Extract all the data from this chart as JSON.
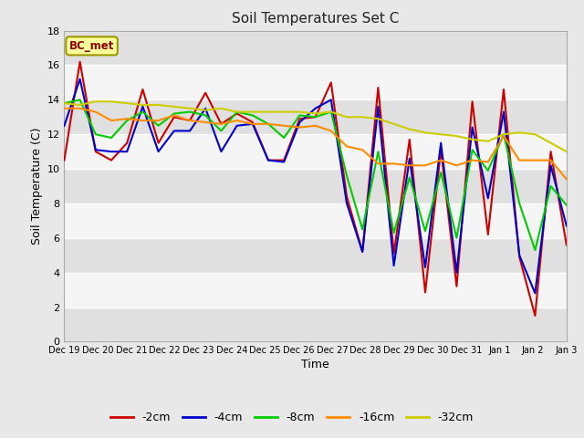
{
  "title": "Soil Temperatures Set C",
  "xlabel": "Time",
  "ylabel": "Soil Temperature (C)",
  "ylim": [
    0,
    18
  ],
  "yticks": [
    0,
    2,
    4,
    6,
    8,
    10,
    12,
    14,
    16,
    18
  ],
  "xtick_labels": [
    "Dec 19",
    "Dec 20",
    "Dec 21",
    "Dec 22",
    "Dec 23",
    "Dec 24",
    "Dec 25",
    "Dec 26",
    "Dec 27",
    "Dec 28",
    "Dec 29",
    "Dec 30",
    "Dec 31",
    "Jan 1",
    "Jan 2",
    "Jan 3"
  ],
  "annotation_text": "BC_met",
  "annotation_color": "#8B0000",
  "annotation_bg": "#FFFF99",
  "annotation_edge": "#999900",
  "series": {
    "-2cm": {
      "color": "#CC0000",
      "linewidth": 1.5,
      "data": [
        10.5,
        16.2,
        11.0,
        10.5,
        11.5,
        14.6,
        11.5,
        13.0,
        12.8,
        14.4,
        12.6,
        13.2,
        12.7,
        10.5,
        10.5,
        12.9,
        13.0,
        15.0,
        8.4,
        5.2,
        14.7,
        5.1,
        11.7,
        2.85,
        11.1,
        3.2,
        13.9,
        6.2,
        14.6,
        4.9,
        1.5,
        11.0,
        5.6
      ]
    },
    "-4cm": {
      "color": "#0000CC",
      "linewidth": 1.5,
      "data": [
        12.5,
        15.2,
        11.1,
        11.0,
        11.0,
        13.6,
        11.0,
        12.2,
        12.2,
        13.5,
        11.0,
        12.5,
        12.6,
        10.5,
        10.4,
        12.7,
        13.5,
        14.0,
        8.0,
        5.2,
        13.6,
        4.4,
        10.6,
        4.3,
        11.5,
        4.0,
        12.4,
        8.3,
        13.3,
        5.0,
        2.8,
        10.2,
        6.7
      ]
    },
    "-8cm": {
      "color": "#00CC00",
      "linewidth": 1.5,
      "data": [
        13.8,
        14.0,
        12.0,
        11.8,
        12.8,
        13.3,
        12.5,
        13.2,
        13.3,
        13.1,
        12.2,
        13.3,
        13.1,
        12.6,
        11.8,
        13.1,
        13.0,
        13.3,
        9.6,
        6.5,
        11.0,
        6.3,
        9.5,
        6.4,
        9.8,
        6.0,
        11.1,
        9.9,
        12.0,
        8.0,
        5.3,
        9.0,
        7.9
      ]
    },
    "-16cm": {
      "color": "#FF8C00",
      "linewidth": 1.5,
      "data": [
        13.5,
        13.5,
        13.3,
        12.8,
        12.9,
        12.8,
        12.8,
        13.1,
        12.8,
        12.7,
        12.6,
        12.8,
        12.6,
        12.6,
        12.5,
        12.4,
        12.5,
        12.2,
        11.3,
        11.1,
        10.3,
        10.3,
        10.2,
        10.2,
        10.5,
        10.2,
        10.5,
        10.4,
        11.9,
        10.5,
        10.5,
        10.5,
        9.4
      ]
    },
    "-32cm": {
      "color": "#CCCC00",
      "linewidth": 1.5,
      "data": [
        13.8,
        13.7,
        13.9,
        13.9,
        13.8,
        13.7,
        13.7,
        13.6,
        13.5,
        13.4,
        13.5,
        13.3,
        13.3,
        13.3,
        13.3,
        13.3,
        13.2,
        13.3,
        13.0,
        13.0,
        12.9,
        12.6,
        12.3,
        12.1,
        12.0,
        11.9,
        11.7,
        11.6,
        12.0,
        12.1,
        12.0,
        11.5,
        11.0
      ]
    }
  },
  "bg_color": "#e8e8e8",
  "plot_bg_color": "#f5f5f5",
  "grid_color": "#ffffff",
  "band_colors": [
    "#e0e0e0",
    "#f5f5f5"
  ]
}
